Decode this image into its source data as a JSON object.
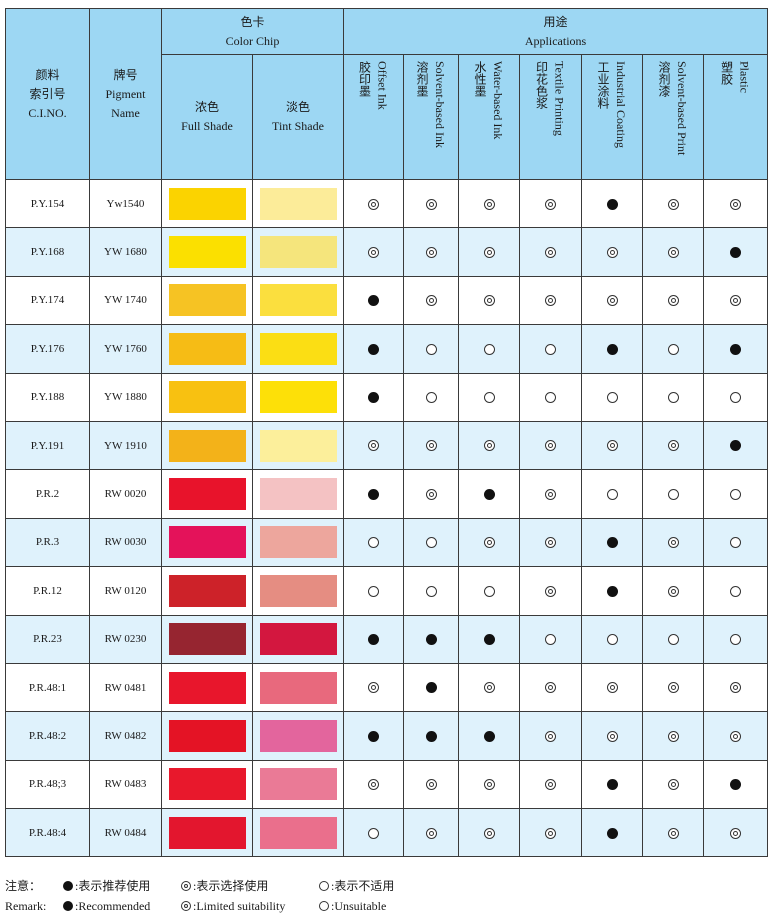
{
  "header": {
    "ci_zh": "颜料\n索引号",
    "ci_en": "C.I.NO.",
    "name_zh": "牌号",
    "name_en": "Pigment\nName",
    "chip_group_zh": "色卡",
    "chip_group_en": "Color Chip",
    "full_zh": "浓色",
    "full_en": "Full Shade",
    "tint_zh": "淡色",
    "tint_en": "Tint Shade",
    "app_group_zh": "用途",
    "app_group_en": "Applications",
    "applications": [
      {
        "zh": "胶印墨",
        "en": "Offset Ink"
      },
      {
        "zh": "溶剂墨",
        "en": "Solvent-based Ink"
      },
      {
        "zh": "水性墨",
        "en": "Water-based Ink"
      },
      {
        "zh": "印花色浆",
        "en": "Textile Printing"
      },
      {
        "zh": "工业涂料",
        "en": "Industrial Coating"
      },
      {
        "zh": "溶剂漆",
        "en": "Solvent-based Print"
      },
      {
        "zh": "塑胶",
        "en": "Plastic"
      }
    ]
  },
  "rows": [
    {
      "ci": "P.Y.154",
      "name": "Yw1540",
      "full": "#fbd300",
      "tint": "#fcec99",
      "apps": [
        "L",
        "L",
        "L",
        "L",
        "R",
        "L",
        "L"
      ]
    },
    {
      "ci": "P.Y.168",
      "name": "YW 1680",
      "full": "#fbe000",
      "tint": "#f5e57c",
      "apps": [
        "L",
        "L",
        "L",
        "L",
        "L",
        "L",
        "R"
      ]
    },
    {
      "ci": "P.Y.174",
      "name": "YW 1740",
      "full": "#f6c323",
      "tint": "#fbdf3e",
      "apps": [
        "R",
        "L",
        "L",
        "L",
        "L",
        "L",
        "L"
      ]
    },
    {
      "ci": "P.Y.176",
      "name": "YW 1760",
      "full": "#f6bc15",
      "tint": "#fbde14",
      "apps": [
        "R",
        "U",
        "U",
        "U",
        "R",
        "U",
        "R"
      ]
    },
    {
      "ci": "P.Y.188",
      "name": "YW 1880",
      "full": "#f8c111",
      "tint": "#fde008",
      "apps": [
        "R",
        "U",
        "U",
        "U",
        "U",
        "U",
        "U"
      ]
    },
    {
      "ci": "P.Y.191",
      "name": "YW 1910",
      "full": "#f3b219",
      "tint": "#fcef9b",
      "apps": [
        "L",
        "L",
        "L",
        "L",
        "L",
        "L",
        "R"
      ]
    },
    {
      "ci": "P.R.2",
      "name": "RW 0020",
      "full": "#e8132b",
      "tint": "#f4c2c3",
      "apps": [
        "R",
        "L",
        "R",
        "L",
        "U",
        "U",
        "U"
      ]
    },
    {
      "ci": "P.R.3",
      "name": "RW 0030",
      "full": "#e4125a",
      "tint": "#eda69d",
      "apps": [
        "U",
        "U",
        "L",
        "L",
        "R",
        "L",
        "U"
      ]
    },
    {
      "ci": "P.R.12",
      "name": "RW 0120",
      "full": "#cd2229",
      "tint": "#e58d82",
      "apps": [
        "U",
        "U",
        "U",
        "L",
        "R",
        "L",
        "U"
      ]
    },
    {
      "ci": "P.R.23",
      "name": "RW 0230",
      "full": "#962530",
      "tint": "#d3173f",
      "apps": [
        "R",
        "R",
        "R",
        "U",
        "U",
        "U",
        "U"
      ]
    },
    {
      "ci": "P.R.48:1",
      "name": "RW 0481",
      "full": "#e8162c",
      "tint": "#e8697d",
      "apps": [
        "L",
        "R",
        "L",
        "L",
        "L",
        "L",
        "L"
      ]
    },
    {
      "ci": "P.R.48:2",
      "name": "RW 0482",
      "full": "#e41325",
      "tint": "#e3659d",
      "apps": [
        "R",
        "R",
        "R",
        "L",
        "L",
        "L",
        "L"
      ]
    },
    {
      "ci": "P.R.48;3",
      "name": "RW 0483",
      "full": "#e8182c",
      "tint": "#ea7a96",
      "apps": [
        "L",
        "L",
        "L",
        "L",
        "R",
        "L",
        "R"
      ]
    },
    {
      "ci": "P.R.48:4",
      "name": "RW 0484",
      "full": "#e3162e",
      "tint": "#ea6f8c",
      "apps": [
        "U",
        "L",
        "L",
        "L",
        "R",
        "L",
        "L"
      ]
    }
  ],
  "legend": {
    "zh_label": "注意：",
    "en_label": "Remark:",
    "zh_rec": ":表示推荐使用",
    "zh_lim": ":表示选择使用",
    "zh_unsuit": ":表示不适用",
    "en_rec": ":Recommended",
    "en_lim": ":Limited suitability",
    "en_unsuit": ":Unsuitable"
  }
}
